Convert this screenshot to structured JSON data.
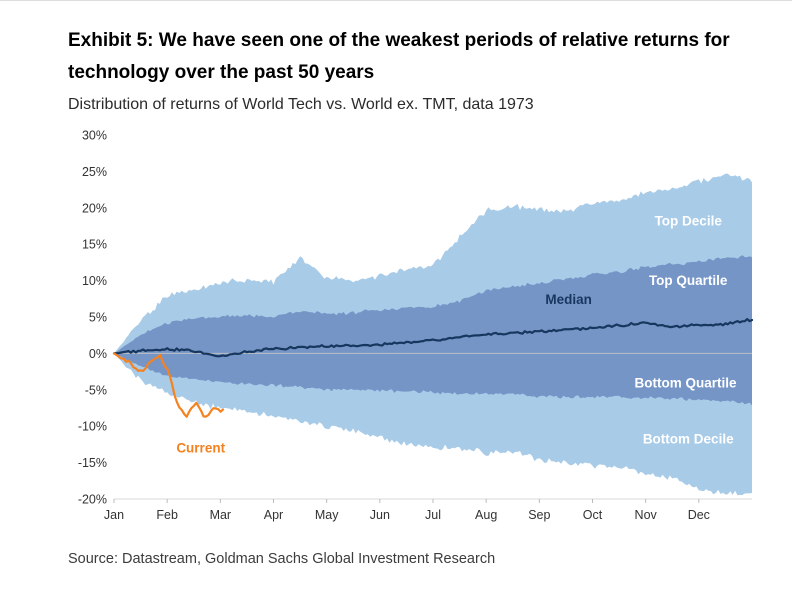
{
  "header": {
    "title": "Exhibit 5: We have seen one of the weakest periods of relative returns for technology over the past 50 years",
    "subtitle": "Distribution of returns of World Tech vs. World ex. TMT, data 1973"
  },
  "footer": {
    "source": "Source: Datastream, Goldman Sachs Global Investment Research"
  },
  "colors": {
    "decile_band": "#A8CBE8",
    "quartile_band": "#7595C7",
    "median_line": "#17375E",
    "current_line": "#F58220",
    "zero_gridline": "#C4C4C4",
    "baseline": "#D9D9D9",
    "axis_text": "#333333",
    "annotation_light": "#FFFFFF"
  },
  "chart_data": {
    "type": "area",
    "title": "Distribution of returns of World Tech vs. World ex. TMT, data 1973",
    "x_categories": [
      "Jan",
      "Feb",
      "Mar",
      "Apr",
      "May",
      "Jun",
      "Jul",
      "Aug",
      "Sep",
      "Oct",
      "Nov",
      "Dec"
    ],
    "x_months_total": 12,
    "ylim": [
      -20,
      30
    ],
    "ytick_step": 5,
    "y_unit": "%",
    "ytick_labels": [
      "30%",
      "25%",
      "20%",
      "15%",
      "10%",
      "5%",
      "0%",
      "-5%",
      "-10%",
      "-15%",
      "-20%"
    ],
    "anchor_spacing_months": 0.5,
    "bands": [
      {
        "name": "Decile band",
        "upper_label": "Top Decile",
        "lower_label": "Bottom Decile",
        "color_key": "decile_band",
        "seed": 1,
        "noise": 1.0,
        "upper": [
          0,
          4.5,
          7.8,
          8.8,
          9.6,
          10.2,
          9.8,
          13.2,
          10.4,
          10.0,
          10.6,
          11.4,
          12.2,
          16.0,
          19.6,
          20.2,
          19.8,
          19.4,
          20.6,
          21.0,
          22.0,
          22.6,
          23.6,
          24.6,
          23.8
        ],
        "lower": [
          0,
          -3.6,
          -5.6,
          -6.6,
          -7.6,
          -8.0,
          -8.6,
          -9.2,
          -10.0,
          -10.6,
          -11.6,
          -12.4,
          -13.0,
          -13.0,
          -13.6,
          -13.6,
          -14.6,
          -15.0,
          -15.4,
          -15.6,
          -16.6,
          -17.2,
          -18.6,
          -19.4,
          -19.0
        ]
      },
      {
        "name": "Quartile band",
        "upper_label": "Top Quartile",
        "lower_label": "Bottom Quartile",
        "color_key": "quartile_band",
        "seed": 2,
        "noise": 0.6,
        "upper": [
          0,
          2.5,
          4.2,
          4.8,
          5.0,
          5.2,
          5.0,
          5.8,
          5.4,
          5.6,
          6.0,
          6.3,
          6.5,
          7.2,
          8.6,
          9.2,
          9.6,
          10.2,
          10.8,
          11.2,
          11.8,
          12.2,
          12.6,
          13.2,
          13.4
        ],
        "lower": [
          0,
          -1.8,
          -3.0,
          -3.6,
          -4.0,
          -4.2,
          -4.4,
          -4.6,
          -5.0,
          -5.0,
          -5.1,
          -5.2,
          -5.3,
          -5.5,
          -5.6,
          -5.6,
          -5.9,
          -6.0,
          -6.0,
          -6.0,
          -6.1,
          -6.2,
          -6.4,
          -6.6,
          -7.0
        ]
      }
    ],
    "lines": [
      {
        "name": "Median",
        "color_key": "median_line",
        "seed": 3,
        "noise": 0.45,
        "x_end": 12,
        "values": [
          0,
          0.4,
          0.6,
          0.3,
          -0.4,
          0.2,
          0.6,
          0.8,
          1.0,
          1.0,
          1.2,
          1.5,
          1.8,
          2.2,
          2.6,
          2.8,
          3.0,
          3.3,
          3.5,
          3.8,
          4.2,
          3.6,
          3.9,
          4.0,
          4.7
        ]
      },
      {
        "name": "Current",
        "color_key": "current_line",
        "seed": 4,
        "noise": 0.7,
        "x_end": 2.05,
        "values": [
          0,
          -0.7,
          -1.6,
          -2.6,
          -1.2,
          -0.3,
          -2.5,
          -7.2,
          -8.6,
          -6.6,
          -8.8,
          -7.6,
          -7.9
        ]
      }
    ],
    "annotations": [
      {
        "text": "Top Decile",
        "x": 10.8,
        "y": 17.6,
        "color_key": "annotation_light"
      },
      {
        "text": "Top Quartile",
        "x": 10.8,
        "y": 9.4,
        "color_key": "annotation_light"
      },
      {
        "text": "Median",
        "x": 8.55,
        "y": 6.8,
        "color_key": "median_line"
      },
      {
        "text": "Bottom Quartile",
        "x": 10.75,
        "y": -4.7,
        "color_key": "annotation_light"
      },
      {
        "text": "Bottom Decile",
        "x": 10.8,
        "y": -12.4,
        "color_key": "annotation_light"
      },
      {
        "text": "Current",
        "x": 1.63,
        "y": -13.6,
        "color_key": "current_line"
      }
    ],
    "grid": {
      "zero_line": true,
      "bottom_baseline": true
    },
    "legend_position": "labels-inline"
  }
}
